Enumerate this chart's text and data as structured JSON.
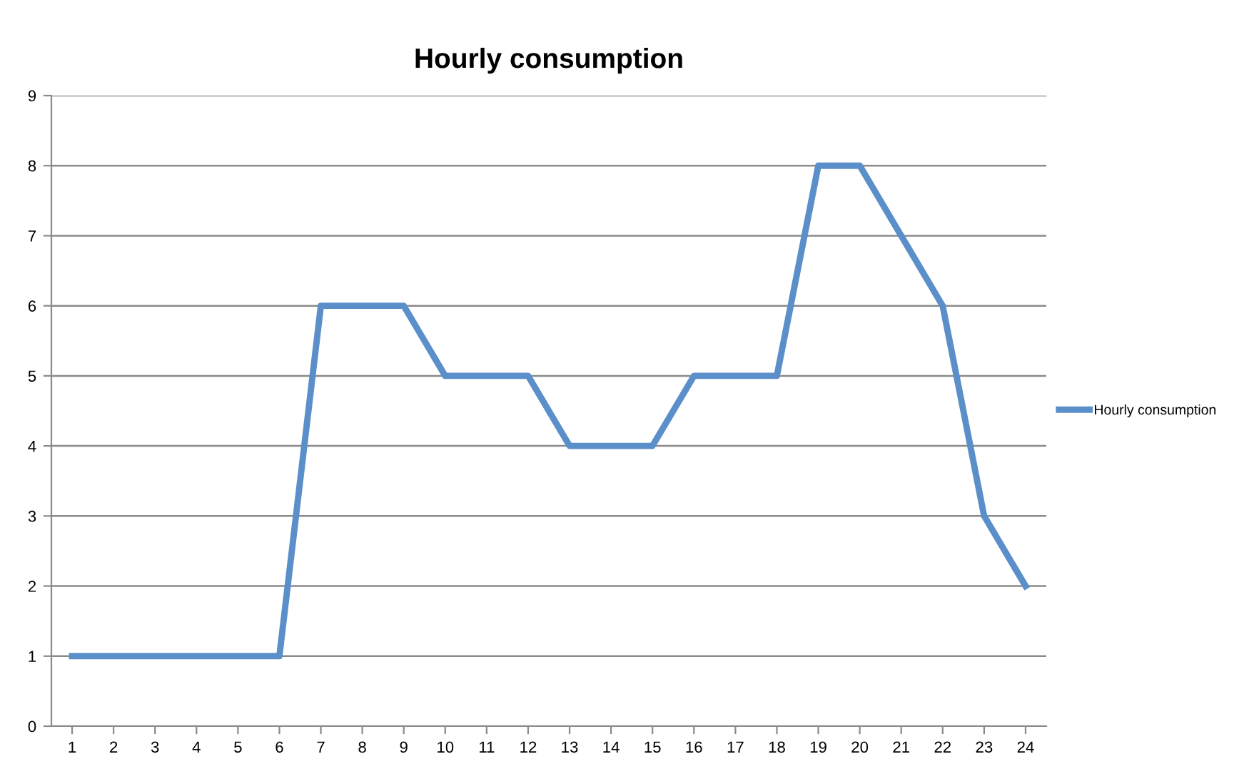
{
  "chart_data": {
    "type": "line",
    "title": "Hourly consumption",
    "categories": [
      "1",
      "2",
      "3",
      "4",
      "5",
      "6",
      "7",
      "8",
      "9",
      "10",
      "11",
      "12",
      "13",
      "14",
      "15",
      "16",
      "17",
      "18",
      "19",
      "20",
      "21",
      "22",
      "23",
      "24"
    ],
    "series": [
      {
        "name": "Hourly consumption",
        "color": "#5b8fc9",
        "values": [
          1,
          1,
          1,
          1,
          1,
          1,
          6,
          6,
          6,
          5,
          5,
          5,
          4,
          4,
          4,
          5,
          5,
          5,
          8,
          8,
          7,
          6,
          3,
          2
        ]
      }
    ],
    "ylim": [
      0,
      9
    ],
    "yticks": [
      0,
      1,
      2,
      3,
      4,
      5,
      6,
      7,
      8,
      9
    ],
    "grid": "y",
    "legend": "right",
    "marker": "none",
    "line_style": "solid"
  }
}
